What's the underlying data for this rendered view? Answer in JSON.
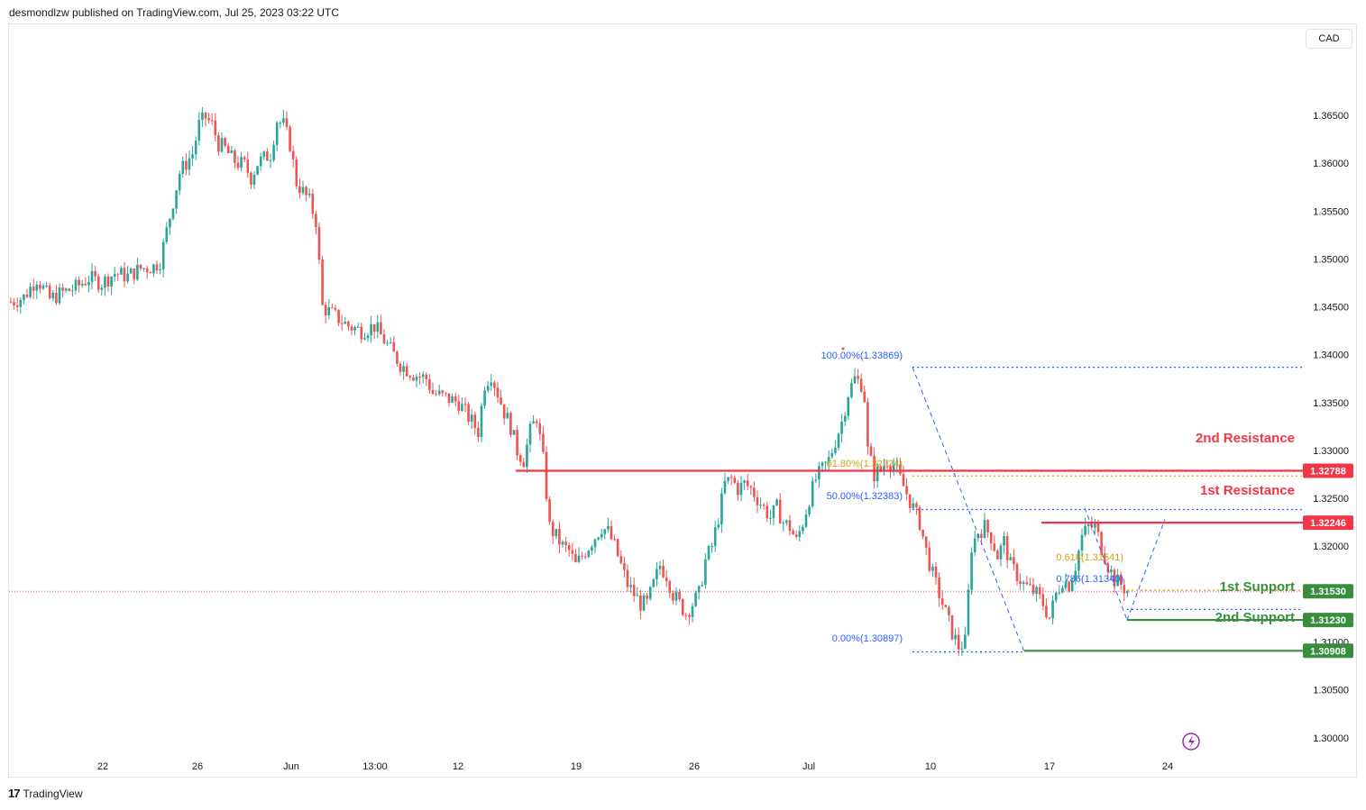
{
  "header": {
    "text": "desmondlzw published on TradingView.com, Jul 25, 2023 03:22 UTC"
  },
  "footer": {
    "logo": "17",
    "brand": "TradingView"
  },
  "currency_button": {
    "label": "CAD"
  },
  "colors": {
    "up": "#26a69a",
    "down": "#ef5350",
    "resistance": "#f23645",
    "support": "#388e3c",
    "fib": "#2962ff",
    "fib_gold": "#d4a017",
    "current": "#ef5350"
  },
  "chart_data": {
    "type": "candlestick",
    "title": "",
    "xlabel": "",
    "ylabel": "",
    "ylim": [
      1.2965,
      1.3745
    ],
    "x_ticks": [
      "22",
      "26",
      "Jun",
      "13:00",
      "12",
      "19",
      "26",
      "Jul",
      "10",
      "17",
      "24"
    ],
    "y_ticks": [
      "1.36500",
      "1.36000",
      "1.35500",
      "1.35000",
      "1.34500",
      "1.34000",
      "1.33500",
      "1.33000",
      "1.32500",
      "1.32000",
      "1.31500",
      "1.31000",
      "1.30500",
      "1.30000"
    ],
    "current_price": 1.3153,
    "price_badges": [
      {
        "label": "1.32788",
        "value": 1.32788,
        "color": "resistance"
      },
      {
        "label": "1.32246",
        "value": 1.32246,
        "color": "resistance"
      },
      {
        "label": "1.31530",
        "value": 1.3153,
        "color": "support"
      },
      {
        "label": "1.31230",
        "value": 1.3123,
        "color": "support"
      },
      {
        "label": "1.30908",
        "value": 1.30908,
        "color": "support"
      }
    ],
    "levels": [
      {
        "label": "2nd Resistance",
        "value": 1.32788,
        "color": "resistance"
      },
      {
        "label": "1st Resistance",
        "value": 1.32246,
        "color": "resistance"
      },
      {
        "label": "1st Support",
        "value": 1.3123,
        "color": "support"
      },
      {
        "label": "2nd Support",
        "value": 1.30908,
        "color": "support"
      }
    ],
    "fib_labels": [
      {
        "label": "100.00%(1.33869)",
        "value": 1.33869
      },
      {
        "label": "61.80%(1.32734)",
        "value": 1.32734
      },
      {
        "label": "50.00%(1.32383)",
        "value": 1.32383
      },
      {
        "label": "0.00%(1.30897)",
        "value": 1.30897
      },
      {
        "label": "0.618(1.31541)",
        "value": 1.31541
      },
      {
        "label": "0.786(1.31340)",
        "value": 1.3134
      }
    ],
    "close_path": [
      [
        0,
        1.3455
      ],
      [
        4,
        1.346
      ],
      [
        8,
        1.348
      ],
      [
        12,
        1.3458
      ],
      [
        16,
        1.3465
      ],
      [
        20,
        1.347
      ],
      [
        24,
        1.348
      ],
      [
        28,
        1.3475
      ],
      [
        32,
        1.3485
      ],
      [
        36,
        1.3482
      ],
      [
        40,
        1.349
      ],
      [
        44,
        1.3492
      ],
      [
        46,
        1.3498
      ],
      [
        50,
        1.356
      ],
      [
        52,
        1.359
      ],
      [
        54,
        1.36
      ],
      [
        56,
        1.361
      ],
      [
        58,
        1.364
      ],
      [
        60,
        1.3648
      ],
      [
        62,
        1.364
      ],
      [
        64,
        1.362
      ],
      [
        66,
        1.3615
      ],
      [
        68,
        1.3605
      ],
      [
        70,
        1.36
      ],
      [
        72,
        1.3598
      ],
      [
        74,
        1.3585
      ],
      [
        76,
        1.36
      ],
      [
        80,
        1.361
      ],
      [
        82,
        1.3645
      ],
      [
        84,
        1.364
      ],
      [
        86,
        1.362
      ],
      [
        88,
        1.358
      ],
      [
        90,
        1.357
      ],
      [
        92,
        1.356
      ],
      [
        94,
        1.354
      ],
      [
        96,
        1.345
      ],
      [
        100,
        1.344
      ],
      [
        104,
        1.343
      ],
      [
        108,
        1.3425
      ],
      [
        112,
        1.343
      ],
      [
        116,
        1.341
      ],
      [
        118,
        1.34
      ],
      [
        120,
        1.339
      ],
      [
        124,
        1.338
      ],
      [
        128,
        1.3375
      ],
      [
        130,
        1.336
      ],
      [
        134,
        1.3355
      ],
      [
        138,
        1.335
      ],
      [
        140,
        1.334
      ],
      [
        144,
        1.332
      ],
      [
        146,
        1.337
      ],
      [
        148,
        1.338
      ],
      [
        150,
        1.336
      ],
      [
        152,
        1.334
      ],
      [
        154,
        1.3325
      ],
      [
        156,
        1.33
      ],
      [
        158,
        1.329
      ],
      [
        160,
        1.332
      ],
      [
        162,
        1.3335
      ],
      [
        164,
        1.329
      ],
      [
        166,
        1.322
      ],
      [
        168,
        1.321
      ],
      [
        170,
        1.32
      ],
      [
        172,
        1.3195
      ],
      [
        174,
        1.318
      ],
      [
        176,
        1.319
      ],
      [
        178,
        1.32
      ],
      [
        180,
        1.321
      ],
      [
        182,
        1.322
      ],
      [
        184,
        1.3215
      ],
      [
        186,
        1.32
      ],
      [
        188,
        1.318
      ],
      [
        190,
        1.316
      ],
      [
        192,
        1.315
      ],
      [
        194,
        1.314
      ],
      [
        196,
        1.314
      ],
      [
        198,
        1.316
      ],
      [
        200,
        1.318
      ],
      [
        202,
        1.317
      ],
      [
        204,
        1.315
      ],
      [
        206,
        1.314
      ],
      [
        208,
        1.313
      ],
      [
        210,
        1.314
      ],
      [
        212,
        1.315
      ],
      [
        214,
        1.3185
      ],
      [
        216,
        1.32
      ],
      [
        218,
        1.323
      ],
      [
        220,
        1.3265
      ],
      [
        222,
        1.327
      ],
      [
        224,
        1.326
      ],
      [
        226,
        1.3265
      ],
      [
        228,
        1.326
      ],
      [
        230,
        1.325
      ],
      [
        232,
        1.324
      ],
      [
        234,
        1.323
      ],
      [
        236,
        1.324
      ],
      [
        238,
        1.3225
      ],
      [
        240,
        1.322
      ],
      [
        242,
        1.3205
      ],
      [
        244,
        1.3225
      ],
      [
        246,
        1.325
      ],
      [
        248,
        1.327
      ],
      [
        250,
        1.328
      ],
      [
        252,
        1.329
      ],
      [
        254,
        1.331
      ],
      [
        256,
        1.333
      ],
      [
        258,
        1.336
      ],
      [
        260,
        1.3375
      ],
      [
        262,
        1.337
      ],
      [
        263,
        1.3355
      ],
      [
        264,
        1.33
      ],
      [
        266,
        1.3275
      ],
      [
        268,
        1.328
      ],
      [
        270,
        1.329
      ],
      [
        272,
        1.3285
      ],
      [
        274,
        1.327
      ],
      [
        276,
        1.3255
      ],
      [
        278,
        1.324
      ],
      [
        280,
        1.3225
      ],
      [
        282,
        1.3195
      ],
      [
        284,
        1.317
      ],
      [
        286,
        1.315
      ],
      [
        288,
        1.313
      ],
      [
        290,
        1.311
      ],
      [
        292,
        1.3095
      ],
      [
        294,
        1.31
      ],
      [
        296,
        1.32
      ],
      [
        298,
        1.3215
      ],
      [
        300,
        1.322
      ],
      [
        302,
        1.321
      ],
      [
        304,
        1.319
      ],
      [
        306,
        1.3205
      ],
      [
        308,
        1.318
      ],
      [
        310,
        1.317
      ],
      [
        312,
        1.316
      ],
      [
        314,
        1.3155
      ],
      [
        316,
        1.315
      ],
      [
        318,
        1.314
      ],
      [
        320,
        1.3125
      ],
      [
        322,
        1.315
      ],
      [
        324,
        1.3165
      ],
      [
        326,
        1.316
      ],
      [
        328,
        1.318
      ],
      [
        330,
        1.321
      ],
      [
        332,
        1.322
      ],
      [
        334,
        1.322
      ],
      [
        336,
        1.32
      ],
      [
        338,
        1.318
      ],
      [
        340,
        1.3165
      ],
      [
        342,
        1.316
      ],
      [
        344,
        1.3153
      ]
    ]
  }
}
